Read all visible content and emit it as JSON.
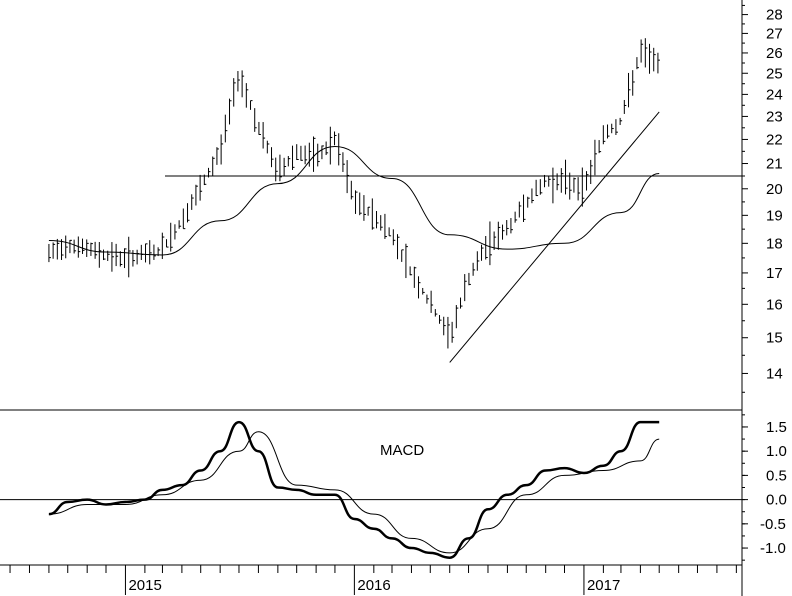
{
  "chart_data": [
    {
      "type": "line",
      "title": "",
      "ylim": [
        13.3,
        28.8
      ],
      "yscale": "log",
      "y_ticks": [
        "14",
        "15",
        "16",
        "17",
        "18",
        "19",
        "20",
        "21",
        "22",
        "23",
        "24",
        "25",
        "26",
        "27",
        "28"
      ],
      "grid": false,
      "horizontal_line": 20.5,
      "trendline": {
        "x": [
          "2016-06-01",
          "2017-05-01"
        ],
        "y": [
          14.3,
          23.2
        ]
      },
      "series": [
        {
          "kind": "bar_ohlc",
          "x": [
            "2014-09-01",
            "2014-10-01",
            "2014-11-01",
            "2014-12-01",
            "2015-01-01",
            "2015-02-01",
            "2015-03-01",
            "2015-04-01",
            "2015-05-01",
            "2015-06-01",
            "2015-07-01",
            "2015-08-01",
            "2015-09-01",
            "2015-10-01",
            "2015-11-01",
            "2015-12-01",
            "2016-01-01",
            "2016-02-01",
            "2016-03-01",
            "2016-04-01",
            "2016-05-01",
            "2016-06-01",
            "2016-07-01",
            "2016-08-01",
            "2016-09-01",
            "2016-10-01",
            "2016-11-01",
            "2016-12-01",
            "2017-01-01",
            "2017-02-01",
            "2017-03-01",
            "2017-04-01",
            "2017-05-01"
          ],
          "values": [
            17.6,
            18.0,
            17.8,
            17.6,
            17.5,
            17.6,
            17.8,
            18.8,
            20.0,
            21.5,
            25.0,
            22.5,
            20.6,
            21.5,
            21.2,
            22.0,
            19.5,
            19.0,
            18.3,
            17.0,
            16.0,
            15.0,
            16.8,
            18.0,
            18.5,
            19.5,
            20.3,
            20.3,
            20.0,
            22.2,
            22.8,
            26.0,
            25.5
          ]
        },
        {
          "kind": "moving_average",
          "x": [
            "2014-09-01",
            "2014-12-01",
            "2015-03-01",
            "2015-06-01",
            "2015-09-01",
            "2015-12-01",
            "2016-03-01",
            "2016-06-01",
            "2016-09-01",
            "2016-12-01",
            "2017-03-01",
            "2017-05-01"
          ],
          "values": [
            18.1,
            17.7,
            17.6,
            18.8,
            20.2,
            21.7,
            20.4,
            18.3,
            17.8,
            18.0,
            19.1,
            20.6
          ]
        }
      ]
    },
    {
      "type": "line",
      "title": "MACD",
      "ylim": [
        -1.35,
        1.85
      ],
      "y_ticks": [
        "1.5",
        "1.0",
        "0.5",
        "0.0",
        "-0.5",
        "-1.0"
      ],
      "grid": false,
      "zero_line": 0,
      "series": [
        {
          "kind": "macd",
          "x": [
            "2014-09-01",
            "2014-10-01",
            "2014-11-01",
            "2014-12-01",
            "2015-01-01",
            "2015-02-01",
            "2015-03-01",
            "2015-04-01",
            "2015-05-01",
            "2015-06-01",
            "2015-07-01",
            "2015-08-01",
            "2015-09-01",
            "2015-10-01",
            "2015-11-01",
            "2015-12-01",
            "2016-01-01",
            "2016-02-01",
            "2016-03-01",
            "2016-04-01",
            "2016-05-01",
            "2016-06-01",
            "2016-07-01",
            "2016-08-01",
            "2016-09-01",
            "2016-10-01",
            "2016-11-01",
            "2016-12-01",
            "2017-01-01",
            "2017-02-01",
            "2017-03-01",
            "2017-04-01",
            "2017-05-01"
          ],
          "values": [
            -0.3,
            -0.05,
            0.0,
            -0.1,
            -0.05,
            0.0,
            0.2,
            0.3,
            0.6,
            1.0,
            1.6,
            1.0,
            0.25,
            0.2,
            0.1,
            0.1,
            -0.4,
            -0.6,
            -0.8,
            -1.0,
            -1.1,
            -1.2,
            -0.8,
            -0.2,
            0.1,
            0.3,
            0.6,
            0.65,
            0.55,
            0.7,
            1.0,
            1.6,
            1.6
          ]
        },
        {
          "kind": "signal",
          "x": [
            "2014-09-01",
            "2014-11-01",
            "2015-01-01",
            "2015-03-01",
            "2015-05-01",
            "2015-07-01",
            "2015-08-01",
            "2015-10-01",
            "2015-12-01",
            "2016-02-01",
            "2016-04-01",
            "2016-06-01",
            "2016-08-01",
            "2016-10-01",
            "2016-12-01",
            "2017-02-01",
            "2017-04-01",
            "2017-05-01"
          ],
          "values": [
            -0.3,
            -0.1,
            -0.1,
            0.1,
            0.4,
            1.0,
            1.4,
            0.3,
            0.2,
            -0.3,
            -0.8,
            -1.1,
            -0.6,
            0.1,
            0.5,
            0.6,
            0.8,
            1.25
          ]
        }
      ]
    }
  ],
  "x_labels": [
    "2015",
    "2016",
    "2017"
  ]
}
